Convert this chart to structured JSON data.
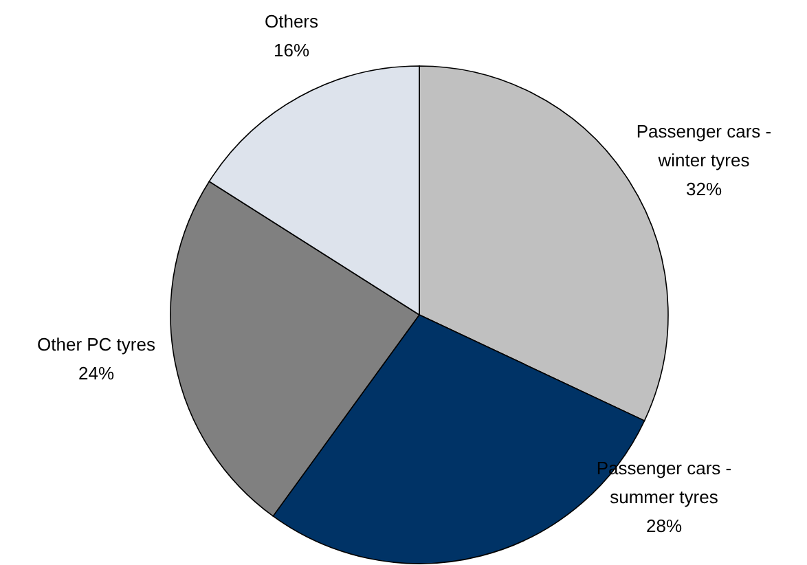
{
  "chart_data": {
    "type": "pie",
    "categories": [
      "Passenger cars - winter tyres",
      "Passenger cars - summer tyres",
      "Other PC tyres",
      "Others"
    ],
    "values": [
      32,
      28,
      24,
      16
    ],
    "colors": [
      "#c0c0c0",
      "#003366",
      "#808080",
      "#dde3ec"
    ],
    "value_labels": [
      "32%",
      "28%",
      "24%",
      "16%"
    ]
  }
}
